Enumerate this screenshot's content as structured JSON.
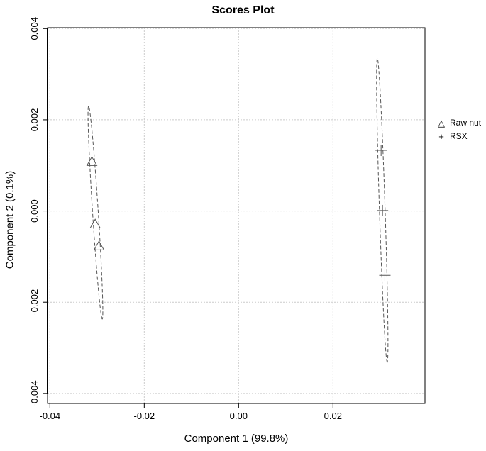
{
  "chart_data": {
    "type": "scatter",
    "title": "Scores Plot",
    "xlabel": "Component 1 (99.8%)",
    "ylabel": "Component 2 (0.1%)",
    "xlim": [
      -0.0405,
      0.0395
    ],
    "ylim": [
      -0.00422,
      0.00402
    ],
    "xticks": [
      -0.04,
      -0.02,
      0.0,
      0.02
    ],
    "xtick_labels": [
      "-0.04",
      "-0.02",
      "0.00",
      "0.02"
    ],
    "yticks": [
      -0.004,
      -0.002,
      0.0,
      0.002,
      0.004
    ],
    "ytick_labels": [
      "-0.004",
      "-0.002",
      "0.000",
      "0.002",
      "0.004"
    ],
    "grid": true,
    "legend_position": "right",
    "series": [
      {
        "name": "Raw nut",
        "marker": "triangle",
        "points": [
          [
            -0.0311,
            0.00108
          ],
          [
            -0.0304,
            -0.00029
          ],
          [
            -0.0296,
            -0.00077
          ]
        ],
        "ellipse": [
          [
            -0.0318,
            0.0023
          ],
          [
            -0.0289,
            -0.00237
          ]
        ]
      },
      {
        "name": "RSX",
        "marker": "plus",
        "points": [
          [
            0.0302,
            0.00133
          ],
          [
            0.0305,
            1e-05
          ],
          [
            0.031,
            -0.00141
          ]
        ],
        "ellipse": [
          [
            0.0294,
            0.00335
          ],
          [
            0.0315,
            -0.00332
          ]
        ]
      }
    ]
  },
  "colors": {
    "marker": "#555555",
    "grid": "#cccccc",
    "axis": "#000000"
  }
}
